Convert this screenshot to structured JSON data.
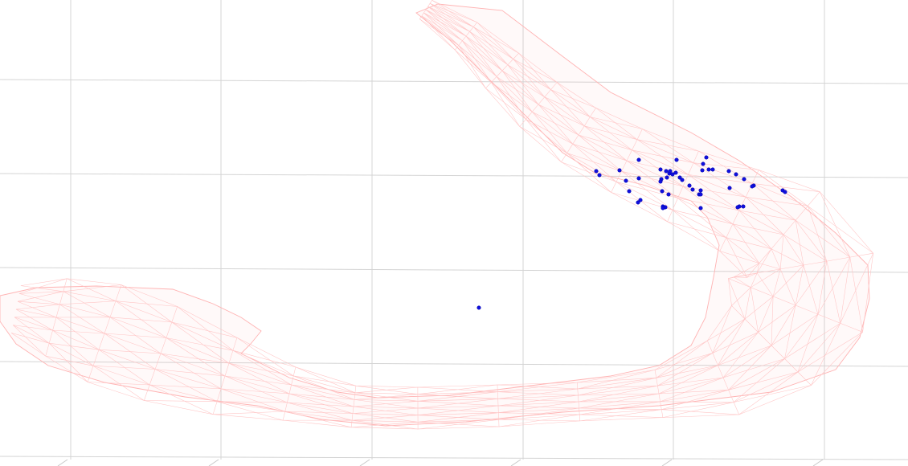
{
  "view": {
    "background_color": "#ffffff",
    "grid_color": "#d4d4d4",
    "mesh_color": "#ffb3b3",
    "marker_color": "#1010e0",
    "marker_count": 49
  }
}
